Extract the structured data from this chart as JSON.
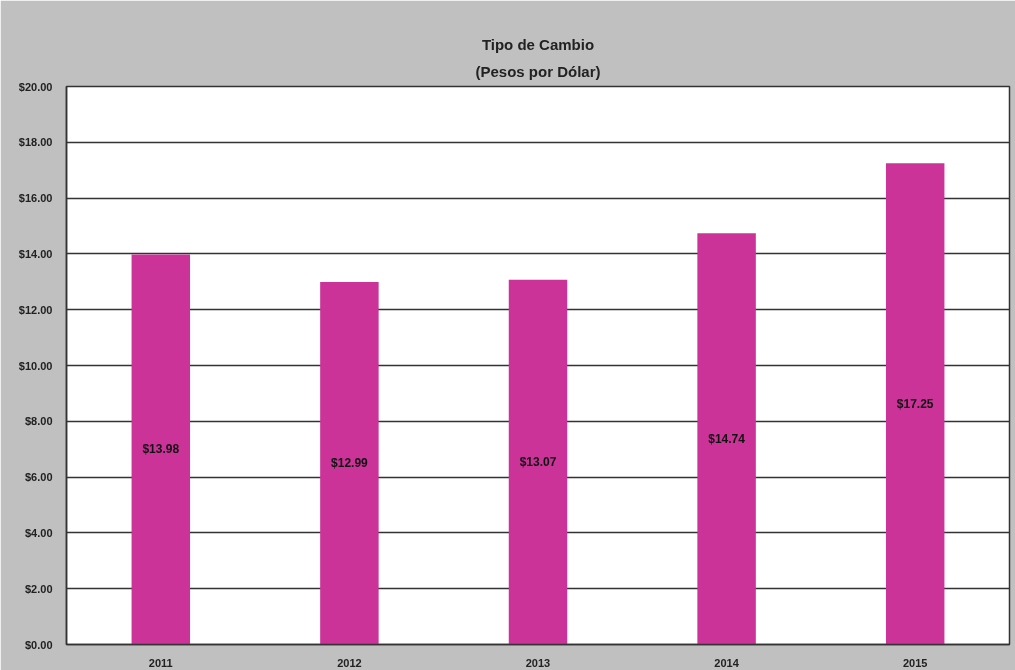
{
  "chart_data": {
    "type": "bar",
    "title": "Tipo de Cambio",
    "subtitle": "(Pesos por Dólar)",
    "categories": [
      "2011",
      "2012",
      "2013",
      "2014",
      "2015"
    ],
    "values": [
      13.98,
      12.99,
      13.07,
      14.74,
      17.25
    ],
    "value_labels": [
      "$13.98",
      "$12.99",
      "$13.07",
      "$14.74",
      "$17.25"
    ],
    "color": "#cc3399",
    "ylim": [
      0,
      20
    ],
    "yticks": [
      {
        "value": 0,
        "label": "$0.00"
      },
      {
        "value": 2,
        "label": "$2.00"
      },
      {
        "value": 4,
        "label": "$4.00"
      },
      {
        "value": 6,
        "label": "$6.00"
      },
      {
        "value": 8,
        "label": "$8.00"
      },
      {
        "value": 10,
        "label": "$10.00"
      },
      {
        "value": 12,
        "label": "$12.00"
      },
      {
        "value": 14,
        "label": "$14.00"
      },
      {
        "value": 16,
        "label": "$16.00"
      },
      {
        "value": 18,
        "label": "$18.00"
      },
      {
        "value": 20,
        "label": "$20.00"
      }
    ],
    "grid": "y"
  }
}
